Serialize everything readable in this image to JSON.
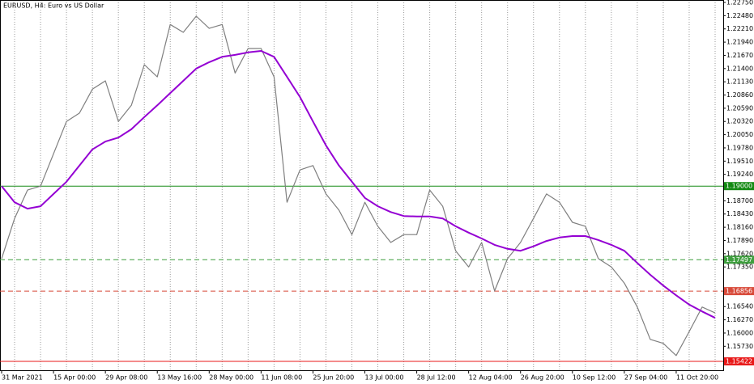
{
  "chart_data": {
    "type": "line",
    "title": "EURUSD, H4:  Euro vs US Dollar",
    "categories": [
      "31 Mar 2021",
      null,
      null,
      null,
      "15 Apr 00:00",
      null,
      null,
      null,
      "29 Apr 08:00",
      null,
      null,
      null,
      "13 May 16:00",
      null,
      null,
      null,
      "28 May 00:00",
      null,
      null,
      null,
      "11 Jun 08:00",
      null,
      null,
      null,
      "25 Jun 20:00",
      null,
      null,
      null,
      "13 Jul 00:00",
      null,
      null,
      null,
      "28 Jul 12:00",
      null,
      null,
      null,
      "12 Aug 04:00",
      null,
      null,
      null,
      "26 Aug 20:00",
      null,
      null,
      null,
      "10 Sep 12:00",
      null,
      null,
      null,
      "27 Sep 04:00",
      null,
      null,
      null,
      "11 Oct 20:00",
      null,
      null,
      null
    ],
    "series": [
      {
        "color": "#7f7f7f",
        "values": [
          1.1752,
          1.1834,
          1.1892,
          1.19,
          1.1966,
          1.2032,
          1.2049,
          1.2098,
          1.2115,
          1.2032,
          1.2065,
          1.2148,
          1.2123,
          1.223,
          1.2214,
          1.2247,
          1.2222,
          1.223,
          1.2131,
          1.2181,
          1.2181,
          1.2123,
          1.1867,
          1.1933,
          1.1942,
          1.1884,
          1.1851,
          1.1801,
          1.1867,
          1.1818,
          1.1785,
          1.1801,
          1.1801,
          1.1892,
          1.1859,
          1.1768,
          1.1735,
          1.1785,
          1.1686,
          1.1752,
          1.1785,
          1.1834,
          1.1884,
          1.1867,
          1.1826,
          1.1818,
          1.1752,
          1.1735,
          1.1702,
          1.1653,
          1.1587,
          1.1579,
          1.1554,
          1.1603,
          1.1653,
          1.1641
        ]
      },
      {
        "color": "#9400d3",
        "values": [
          1.19,
          1.1867,
          1.1854,
          1.1859,
          1.1884,
          1.1909,
          1.1942,
          1.1975,
          1.1991,
          1.1999,
          1.2016,
          1.2041,
          1.2065,
          1.209,
          1.2115,
          1.214,
          1.2153,
          1.2164,
          1.2168,
          1.2173,
          1.2176,
          1.2164,
          1.2123,
          1.2082,
          1.2032,
          1.1983,
          1.1942,
          1.1909,
          1.1876,
          1.1859,
          1.1847,
          1.1839,
          1.1838,
          1.1838,
          1.1834,
          1.1818,
          1.1805,
          1.1793,
          1.178,
          1.1772,
          1.1768,
          1.1777,
          1.1788,
          1.1795,
          1.1798,
          1.1798,
          1.179,
          1.178,
          1.1768,
          1.1743,
          1.1719,
          1.1697,
          1.1677,
          1.1658,
          1.1644,
          1.1631
        ]
      }
    ],
    "ylim": [
      1.1524,
      1.228
    ],
    "yticks": [
      {
        "value": 1.2275,
        "label": "1.22750"
      },
      {
        "value": 1.2248,
        "label": "1.22480"
      },
      {
        "value": 1.2221,
        "label": "1.22210"
      },
      {
        "value": 1.2194,
        "label": "1.21940"
      },
      {
        "value": 1.2167,
        "label": "1.21670"
      },
      {
        "value": 1.214,
        "label": "1.21400"
      },
      {
        "value": 1.2113,
        "label": "1.21130"
      },
      {
        "value": 1.2086,
        "label": "1.20860"
      },
      {
        "value": 1.2059,
        "label": "1.20590"
      },
      {
        "value": 1.2032,
        "label": "1.20320"
      },
      {
        "value": 1.2005,
        "label": "1.20050"
      },
      {
        "value": 1.1978,
        "label": "1.19780"
      },
      {
        "value": 1.1951,
        "label": "1.19510"
      },
      {
        "value": 1.1924,
        "label": "1.19240"
      },
      {
        "value": 1.187,
        "label": "1.18700"
      },
      {
        "value": 1.1843,
        "label": "1.18430"
      },
      {
        "value": 1.1816,
        "label": "1.18160"
      },
      {
        "value": 1.1789,
        "label": "1.17890"
      },
      {
        "value": 1.1762,
        "label": "1.17620"
      },
      {
        "value": 1.1735,
        "label": "1.17350"
      },
      {
        "value": 1.1654,
        "label": "1.16540"
      },
      {
        "value": 1.1627,
        "label": "1.16270"
      },
      {
        "value": 1.16,
        "label": "1.16000"
      },
      {
        "value": 1.1573,
        "label": "1.15730"
      }
    ],
    "levels": [
      {
        "value": 1.19,
        "label": "1.19000",
        "color": "#138a13",
        "style": "solid"
      },
      {
        "value": 1.17497,
        "label": "1.17497",
        "color": "#3e9e3e",
        "style": "dashed"
      },
      {
        "value": 1.16856,
        "label": "1.16856",
        "color": "#d84a3a",
        "style": "dashed"
      },
      {
        "value": 1.15422,
        "label": "1.15422",
        "color": "#e81818",
        "style": "solid"
      }
    ],
    "grid": true
  }
}
